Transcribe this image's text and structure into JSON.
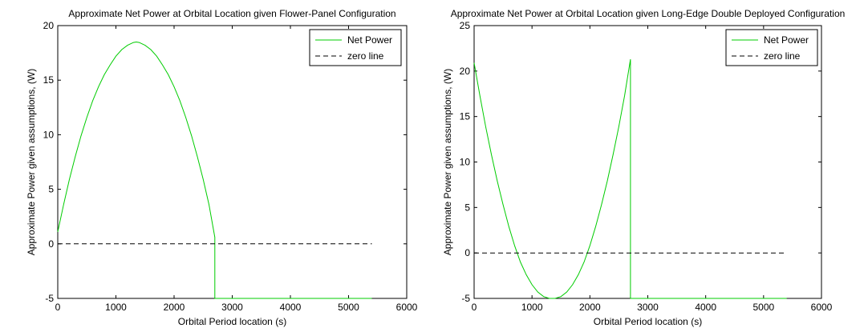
{
  "chart_data": [
    {
      "type": "line",
      "title": "Approximate Net Power at Orbital Location given Flower-Panel Configuration",
      "xlabel": "Orbital Period location (s)",
      "ylabel": "Approximate Power given assumptions, (W)",
      "xlim": [
        0,
        6000
      ],
      "ylim": [
        -5,
        20
      ],
      "xticks": [
        0,
        1000,
        2000,
        3000,
        4000,
        5000,
        6000
      ],
      "yticks": [
        -5,
        0,
        5,
        10,
        15,
        20
      ],
      "grid": false,
      "legend_position": "top-right",
      "series": [
        {
          "name": "Net Power",
          "color": "#00cc00",
          "style": "solid",
          "x": [
            0,
            100,
            200,
            300,
            400,
            500,
            600,
            700,
            800,
            900,
            1000,
            1100,
            1200,
            1300,
            1350,
            1400,
            1500,
            1600,
            1700,
            1800,
            1900,
            2000,
            2100,
            2200,
            2300,
            2400,
            2500,
            2600,
            2700,
            2700,
            2800,
            3500,
            4500,
            5400
          ],
          "y": [
            1.1,
            3.6,
            5.9,
            8.0,
            9.9,
            11.6,
            13.1,
            14.4,
            15.5,
            16.4,
            17.2,
            17.8,
            18.2,
            18.45,
            18.5,
            18.45,
            18.2,
            17.8,
            17.2,
            16.4,
            15.5,
            14.4,
            13.1,
            11.6,
            9.9,
            8.0,
            5.9,
            3.6,
            0.6,
            -5,
            -5,
            -5,
            -5,
            -5
          ]
        },
        {
          "name": "zero line",
          "color": "#000000",
          "style": "dashed",
          "x": [
            0,
            5400
          ],
          "y": [
            0,
            0
          ]
        }
      ]
    },
    {
      "type": "line",
      "title": "Approximate Net Power at Orbital Location given Long-Edge Double Deployed Configuration",
      "xlabel": "Orbital Period location (s)",
      "ylabel": "Approximate Power given assumptions, (W)",
      "xlim": [
        0,
        6000
      ],
      "ylim": [
        -5,
        25
      ],
      "xticks": [
        0,
        1000,
        2000,
        3000,
        4000,
        5000,
        6000
      ],
      "yticks": [
        -5,
        0,
        5,
        10,
        15,
        20,
        25
      ],
      "grid": false,
      "legend_position": "top-right",
      "series": [
        {
          "name": "Net Power",
          "color": "#00cc00",
          "style": "solid",
          "x": [
            0,
            100,
            200,
            300,
            400,
            500,
            600,
            700,
            800,
            900,
            1000,
            1100,
            1200,
            1300,
            1350,
            1400,
            1500,
            1600,
            1700,
            1800,
            1900,
            2000,
            2100,
            2200,
            2300,
            2400,
            2500,
            2600,
            2700,
            2700,
            2800,
            3500,
            4500,
            5400
          ],
          "y": [
            20.9,
            17.3,
            13.9,
            10.8,
            7.9,
            5.3,
            2.9,
            0.8,
            -1.0,
            -2.4,
            -3.5,
            -4.3,
            -4.8,
            -5.0,
            -5.0,
            -5.0,
            -4.8,
            -4.3,
            -3.5,
            -2.4,
            -1.0,
            0.8,
            2.9,
            5.3,
            7.9,
            10.8,
            13.9,
            17.3,
            21.3,
            -5,
            -5,
            -5,
            -5,
            -5
          ]
        },
        {
          "name": "zero line",
          "color": "#000000",
          "style": "dashed",
          "x": [
            0,
            5400
          ],
          "y": [
            0,
            0
          ]
        }
      ]
    }
  ]
}
